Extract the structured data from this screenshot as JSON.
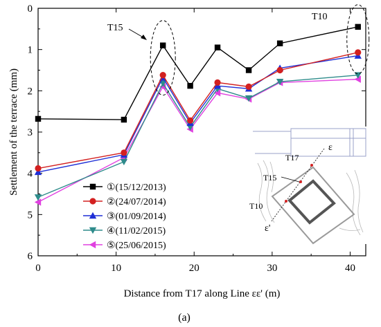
{
  "chart_data": {
    "type": "line",
    "title": "",
    "xlabel": "Distance from T17 along Line εε' (m)",
    "ylabel": "Settlement of the terrace (mm)",
    "panel_label": "(a)",
    "xlim": [
      0,
      42
    ],
    "ylim": [
      0,
      6
    ],
    "y_inverted": true,
    "xticks": [
      0,
      10,
      20,
      30,
      40
    ],
    "yticks": [
      0,
      1,
      2,
      3,
      4,
      5,
      6
    ],
    "x": [
      0,
      11,
      16,
      19.5,
      23,
      27,
      31,
      41
    ],
    "series": [
      {
        "name": "①(15/12/2013)",
        "color": "#000000",
        "marker": "square",
        "values": [
          2.68,
          2.7,
          0.9,
          1.88,
          0.95,
          1.5,
          0.85,
          0.45
        ]
      },
      {
        "name": "②(24/07/2014)",
        "color": "#d32020",
        "marker": "circle",
        "values": [
          3.88,
          3.5,
          1.62,
          2.72,
          1.8,
          1.9,
          1.5,
          1.07
        ]
      },
      {
        "name": "③(01/09/2014)",
        "color": "#1f2fd6",
        "marker": "triangle-up",
        "values": [
          3.97,
          3.55,
          1.68,
          2.78,
          1.88,
          1.95,
          1.45,
          1.15
        ]
      },
      {
        "name": "④(11/02/2015)",
        "color": "#2e8b8b",
        "marker": "triangle-down",
        "values": [
          4.58,
          3.72,
          1.82,
          2.88,
          1.95,
          2.18,
          1.78,
          1.62
        ]
      },
      {
        "name": "⑤(25/06/2015)",
        "color": "#e040e0",
        "marker": "triangle-left",
        "values": [
          4.7,
          3.62,
          1.9,
          2.93,
          2.05,
          2.2,
          1.8,
          1.72
        ]
      }
    ],
    "annotations": [
      {
        "text": "T15",
        "x": 16,
        "y": 0.9
      },
      {
        "text": "T10",
        "x": 41,
        "y": 0.45
      }
    ],
    "inset_labels": {
      "epsilon_top": "ε",
      "epsilon_bottom": "ε'",
      "t17": "T17",
      "t15": "T15",
      "t10": "T10"
    },
    "grid": false,
    "legend_position": "bottom-left"
  }
}
